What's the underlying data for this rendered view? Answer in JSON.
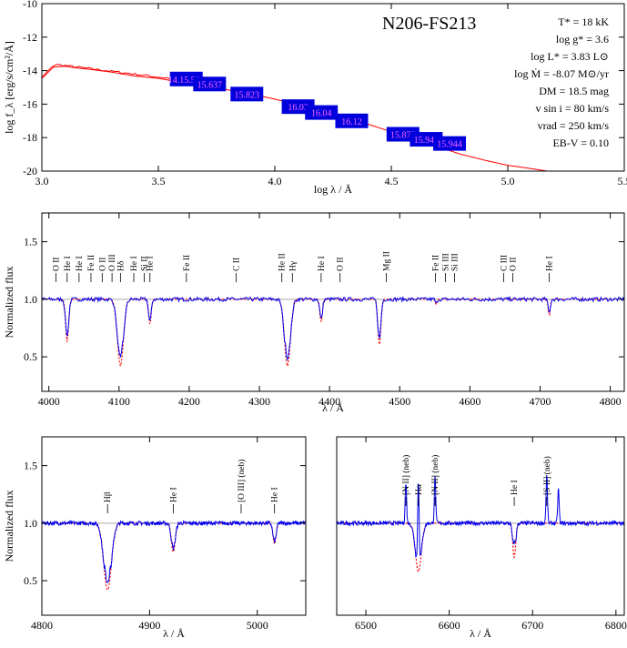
{
  "chart_data": [
    {
      "type": "line",
      "panel": "sed",
      "title": "N206-FS213",
      "xlabel": "log λ / Å",
      "ylabel": "log f_λ [erg/s/cm²/Å]",
      "xlim": [
        3.0,
        5.5
      ],
      "ylim": [
        -20,
        -10
      ],
      "xticks": [
        "3.0",
        "3.5",
        "4.0",
        "4.5",
        "5.0",
        "5.5"
      ],
      "yticks": [
        "-10",
        "-12",
        "-14",
        "-16",
        "-18",
        "-20"
      ],
      "parameters": {
        "teff": "T* = 18 kK",
        "logg": "log g* = 3.6",
        "logL": "log L* = 3.83 L⊙",
        "mdot": "log Ṁ = -8.07 M⊙/yr",
        "dm": "DM = 18.5 mag",
        "vsini": "v sin i = 80 km/s",
        "vrad": "vrad = 250 km/s",
        "ebv": "EB-V = 0.10"
      },
      "model_sed": {
        "x": [
          3.0,
          3.05,
          3.1,
          3.15,
          3.2,
          3.3,
          3.4,
          3.5,
          3.6,
          3.7,
          3.8,
          3.9,
          4.0,
          4.1,
          4.2,
          4.3,
          4.4,
          4.5,
          4.6,
          4.7,
          4.8,
          4.9,
          5.0,
          5.1,
          5.17
        ],
        "y": [
          -14.4,
          -13.85,
          -13.7,
          -13.8,
          -13.95,
          -14.1,
          -14.3,
          -14.5,
          -14.7,
          -14.9,
          -15.15,
          -15.4,
          -15.7,
          -16.05,
          -16.4,
          -16.8,
          -17.2,
          -17.65,
          -18.1,
          -18.55,
          -19.0,
          -19.35,
          -19.65,
          -19.85,
          -20.0
        ]
      },
      "photometry": [
        {
          "label": "14.15.524",
          "x": 3.62,
          "y": -14.5
        },
        {
          "label": "15.637",
          "x": 3.72,
          "y": -14.8
        },
        {
          "label": "15.823",
          "x": 3.88,
          "y": -15.4
        },
        {
          "label": "16.02",
          "x": 4.1,
          "y": -16.15
        },
        {
          "label": "16.04",
          "x": 4.2,
          "y": -16.5
        },
        {
          "label": "16.12",
          "x": 4.33,
          "y": -17.0
        },
        {
          "label": "15.879",
          "x": 4.55,
          "y": -17.8
        },
        {
          "label": "15.944",
          "x": 4.65,
          "y": -18.1
        },
        {
          "label": "15.944",
          "x": 4.75,
          "y": -18.35
        }
      ]
    },
    {
      "type": "line",
      "panel": "blue",
      "xlabel": "λ / Å",
      "ylabel": "Normalized flux",
      "xlim": [
        3990,
        4820
      ],
      "ylim": [
        0.2,
        1.75
      ],
      "xticks": [
        "4000",
        "4100",
        "4200",
        "4300",
        "4400",
        "4500",
        "4600",
        "4700",
        "4800"
      ],
      "yticks": [
        "0.5",
        "1.0",
        "1.5"
      ],
      "series": [
        {
          "role": "observed",
          "color": "#0000ee"
        },
        {
          "role": "model",
          "color": "#ff0000"
        }
      ],
      "absorption": [
        {
          "x": 4026,
          "depth": 0.37,
          "w": 3
        },
        {
          "x": 4102,
          "depth": 0.58,
          "w": 6
        },
        {
          "x": 4144,
          "depth": 0.22,
          "w": 2.5
        },
        {
          "x": 4340,
          "depth": 0.58,
          "w": 6
        },
        {
          "x": 4388,
          "depth": 0.2,
          "w": 2.5
        },
        {
          "x": 4471,
          "depth": 0.4,
          "w": 3
        },
        {
          "x": 4552,
          "depth": 0.05,
          "w": 1.5
        },
        {
          "x": 4713,
          "depth": 0.14,
          "w": 2
        }
      ],
      "line_ids": [
        {
          "label": "O II",
          "x": 4010
        },
        {
          "label": "He I",
          "x": 4026
        },
        {
          "label": "He I",
          "x": 4043
        },
        {
          "label": "Fe II",
          "x": 4060
        },
        {
          "label": "O II",
          "x": 4076
        },
        {
          "label": "O III",
          "x": 4090
        },
        {
          "label": "Hδ",
          "x": 4102
        },
        {
          "label": "He I",
          "x": 4121
        },
        {
          "label": "Si II",
          "x": 4136
        },
        {
          "label": "He I",
          "x": 4144
        },
        {
          "label": "Fe II",
          "x": 4196
        },
        {
          "label": "C II",
          "x": 4267
        },
        {
          "label": "He II",
          "x": 4332
        },
        {
          "label": "Hγ",
          "x": 4347
        },
        {
          "label": "He I",
          "x": 4388
        },
        {
          "label": "O II",
          "x": 4415
        },
        {
          "label": "Mg II",
          "x": 4481
        },
        {
          "label": "Fe II",
          "x": 4551
        },
        {
          "label": "Si III",
          "x": 4565
        },
        {
          "label": "Si III",
          "x": 4578
        },
        {
          "label": "C III",
          "x": 4648
        },
        {
          "label": "O II",
          "x": 4661
        },
        {
          "label": "He I",
          "x": 4713
        }
      ]
    },
    {
      "type": "line",
      "panel": "hbeta",
      "xlabel": "λ / Å",
      "ylabel": "Normalized flux",
      "xlim": [
        4800,
        5045
      ],
      "ylim": [
        0.2,
        1.75
      ],
      "xticks": [
        "4800",
        "4900",
        "5000"
      ],
      "yticks": [
        "0.5",
        "1.0",
        "1.5"
      ],
      "absorption": [
        {
          "x": 4861,
          "depth": 0.58,
          "w": 5
        },
        {
          "x": 4922,
          "depth": 0.25,
          "w": 2.5
        },
        {
          "x": 5016,
          "depth": 0.18,
          "w": 2
        }
      ],
      "line_ids": [
        {
          "label": "Hβ",
          "x": 4861
        },
        {
          "label": "He I",
          "x": 4922
        },
        {
          "label": "[O III] (neb)",
          "x": 4985
        },
        {
          "label": "He I",
          "x": 5016
        }
      ]
    },
    {
      "type": "line",
      "panel": "halpha",
      "xlabel": "λ / Å",
      "xlim": [
        6465,
        6810
      ],
      "ylim": [
        0.2,
        1.75
      ],
      "xticks": [
        "6500",
        "6600",
        "6700",
        "6800"
      ],
      "absorption": [
        {
          "x": 6563,
          "depth": 0.42,
          "w": 5
        },
        {
          "x": 6678,
          "depth": 0.3,
          "w": 2.5
        }
      ],
      "emission": [
        {
          "x": 6548,
          "height": 0.35
        },
        {
          "x": 6563,
          "height": 0.75
        },
        {
          "x": 6583,
          "height": 0.4
        },
        {
          "x": 6717,
          "height": 0.42
        },
        {
          "x": 6731,
          "height": 0.3
        },
        {
          "x": 6678,
          "height": 0.1
        }
      ],
      "line_ids": [
        {
          "label": "[N II] (neb)",
          "x": 6548
        },
        {
          "label": "Hα",
          "x": 6563
        },
        {
          "label": "He I",
          "x": 6678
        },
        {
          "label": "[N II] (neb)",
          "x": 6583
        },
        {
          "label": "[S II] (neb)",
          "x": 6717
        }
      ]
    }
  ]
}
